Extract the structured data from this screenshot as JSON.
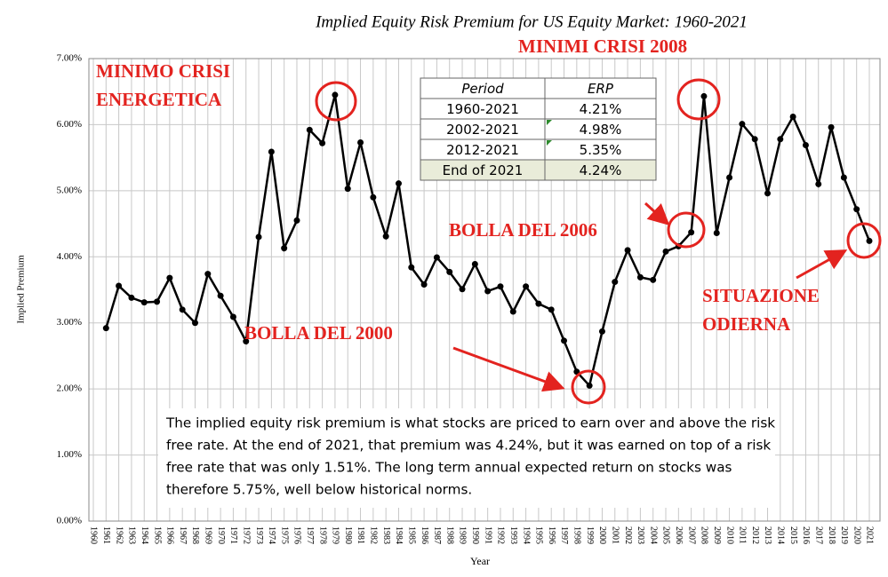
{
  "chart_data": {
    "type": "line",
    "title": "Implied Equity Risk Premium for US Equity Market: 1960-2021",
    "y_label": "Implied Premium",
    "x_label": "Year",
    "categories": [
      "1960",
      "1961",
      "1962",
      "1963",
      "1964",
      "1965",
      "1966",
      "1967",
      "1968",
      "1969",
      "1970",
      "1971",
      "1972",
      "1973",
      "1974",
      "1975",
      "1976",
      "1977",
      "1978",
      "1979",
      "1980",
      "1981",
      "1982",
      "1983",
      "1984",
      "1985",
      "1986",
      "1987",
      "1988",
      "1989",
      "1990",
      "1991",
      "1992",
      "1993",
      "1994",
      "1995",
      "1996",
      "1997",
      "1998",
      "1999",
      "2000",
      "2001",
      "2002",
      "2003",
      "2004",
      "2005",
      "2006",
      "2007",
      "2008",
      "2009",
      "2010",
      "2011",
      "2012",
      "2013",
      "2014",
      "2015",
      "2016",
      "2017",
      "2018",
      "2019",
      "2020",
      "2021"
    ],
    "values": [
      null,
      2.92,
      3.56,
      3.38,
      3.31,
      3.32,
      3.68,
      3.2,
      3.0,
      3.74,
      3.41,
      3.09,
      2.72,
      4.3,
      5.59,
      4.13,
      4.55,
      5.92,
      5.72,
      6.45,
      5.03,
      5.73,
      4.9,
      4.31,
      5.11,
      3.84,
      3.58,
      3.99,
      3.77,
      3.51,
      3.89,
      3.48,
      3.55,
      3.17,
      3.55,
      3.29,
      3.2,
      2.73,
      2.26,
      2.05,
      2.87,
      3.62,
      4.1,
      3.69,
      3.65,
      4.08,
      4.16,
      4.37,
      6.43,
      4.36,
      5.2,
      6.01,
      5.78,
      4.96,
      5.78,
      6.12,
      5.69,
      5.1,
      5.96,
      5.2,
      4.72,
      4.24
    ],
    "color": "#000000",
    "ylim": [
      0,
      7
    ],
    "yticks": [
      {
        "value": 0,
        "label": "0.00%"
      },
      {
        "value": 1,
        "label": "1.00%"
      },
      {
        "value": 2,
        "label": "2.00%"
      },
      {
        "value": 3,
        "label": "3.00%"
      },
      {
        "value": 4,
        "label": "4.00%"
      },
      {
        "value": 5,
        "label": "5.00%"
      },
      {
        "value": 6,
        "label": "6.00%"
      },
      {
        "value": 7,
        "label": "7.00%"
      }
    ],
    "grid": true,
    "annotations": [
      {
        "lines": [
          "MINIMO CRISI",
          "ENERGETICA"
        ]
      },
      {
        "lines": [
          "MINIMI CRISI 2008"
        ]
      },
      {
        "lines": [
          "BOLLA DEL 2006"
        ]
      },
      {
        "lines": [
          "BOLLA DEL 2000"
        ]
      },
      {
        "lines": [
          "SITUAZIONE",
          "ODIERNA"
        ]
      }
    ],
    "table": {
      "columns": [
        "Period",
        "ERP"
      ],
      "rows": [
        [
          "1960-2021",
          "4.21%"
        ],
        [
          "2002-2021",
          "4.98%"
        ],
        [
          "2012-2021",
          "5.35%"
        ],
        [
          "End of 2021",
          "4.24%"
        ]
      ]
    },
    "note_lines": [
      "The implied equity risk premium is what stocks are priced to earn over and above the risk",
      "free rate. At the end of 2021, that premium was 4.24%, but it was earned on top of a risk",
      "free rate that was only 1.51%. The long term annual expected return on stocks was",
      "therefore 5.75%, well below historical norms."
    ]
  }
}
